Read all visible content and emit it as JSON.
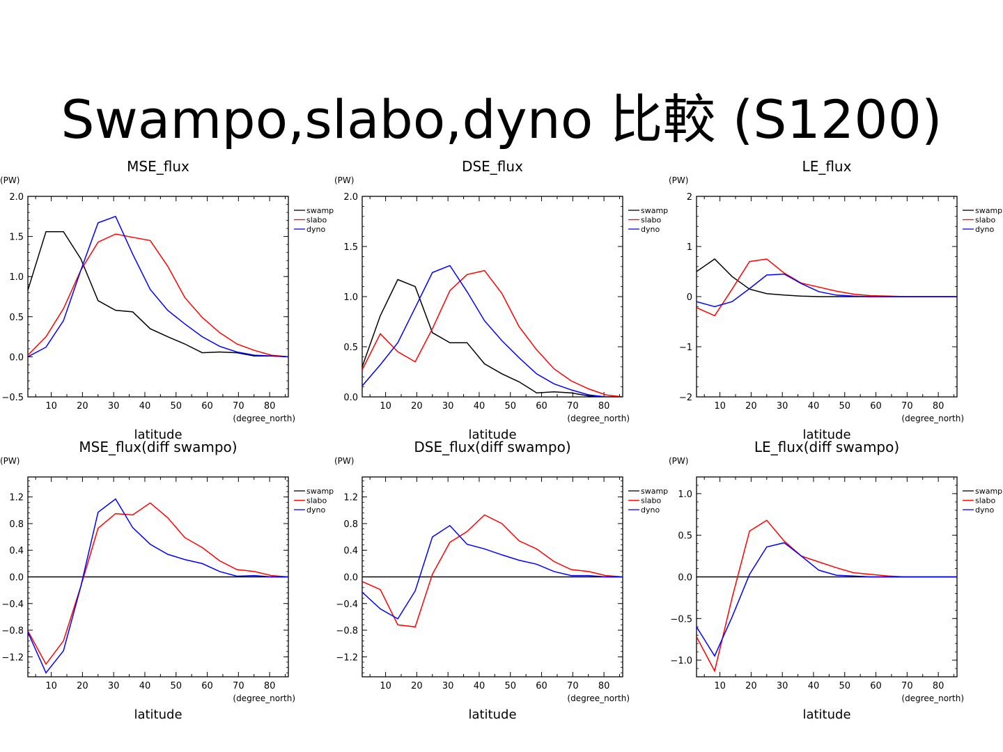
{
  "slide": {
    "title": "Swampo,slabo,dyno 比較 (S1200)"
  },
  "colors": {
    "swamp": "#000000",
    "slabo": "#ff0000",
    "dyno": "#0000ff"
  },
  "chart_data": [
    {
      "type": "line",
      "title": "MSE_flux",
      "ylabel": "(PW)",
      "xlabel": "latitude",
      "xunit": "(degree_north)",
      "xlim": [
        2.5,
        86
      ],
      "ylim": [
        -0.5,
        2.0
      ],
      "xticks": [
        10,
        20,
        30,
        40,
        50,
        60,
        70,
        80
      ],
      "yticks": [
        -0.5,
        0.0,
        0.5,
        1.0,
        1.5,
        2.0
      ],
      "ytick_labels": [
        "−0.5",
        "0.0",
        "0.5",
        "1.0",
        "1.5",
        "2.0"
      ],
      "legend": "top-right",
      "series": [
        {
          "name": "swamp",
          "x": [
            2.5,
            8.3,
            13.9,
            19.5,
            25.0,
            30.6,
            36.1,
            41.7,
            47.3,
            52.8,
            58.4,
            64.0,
            69.5,
            75.1,
            80.6,
            86.0
          ],
          "y": [
            0.83,
            1.56,
            1.56,
            1.22,
            0.7,
            0.58,
            0.56,
            0.35,
            0.25,
            0.16,
            0.05,
            0.06,
            0.05,
            0.01,
            0.01,
            0.0
          ]
        },
        {
          "name": "slabo",
          "x": [
            2.5,
            8.3,
            13.9,
            19.5,
            25.0,
            30.6,
            36.1,
            41.7,
            47.3,
            52.8,
            58.4,
            64.0,
            69.5,
            75.1,
            80.6,
            86.0
          ],
          "y": [
            0.02,
            0.25,
            0.6,
            1.08,
            1.43,
            1.53,
            1.49,
            1.45,
            1.13,
            0.74,
            0.49,
            0.3,
            0.16,
            0.08,
            0.02,
            0.0
          ]
        },
        {
          "name": "dyno",
          "x": [
            2.5,
            8.3,
            13.9,
            19.5,
            25.0,
            30.6,
            36.1,
            41.7,
            47.3,
            52.8,
            58.4,
            64.0,
            69.5,
            75.1,
            80.6,
            86.0
          ],
          "y": [
            0.0,
            0.12,
            0.45,
            1.08,
            1.67,
            1.75,
            1.28,
            0.84,
            0.58,
            0.41,
            0.25,
            0.13,
            0.06,
            0.02,
            0.01,
            0.0
          ]
        }
      ]
    },
    {
      "type": "line",
      "title": "DSE_flux",
      "ylabel": "(PW)",
      "xlabel": "latitude",
      "xunit": "(degree_north)",
      "xlim": [
        2.5,
        86
      ],
      "ylim": [
        0.0,
        2.0
      ],
      "xticks": [
        10,
        20,
        30,
        40,
        50,
        60,
        70,
        80
      ],
      "yticks": [
        0.0,
        0.5,
        1.0,
        1.5,
        2.0
      ],
      "ytick_labels": [
        "0.0",
        "0.5",
        "1.0",
        "1.5",
        "2.0"
      ],
      "legend": "top-right",
      "series": [
        {
          "name": "swamp",
          "x": [
            2.5,
            8.3,
            13.9,
            19.5,
            25.0,
            30.6,
            36.1,
            41.7,
            47.3,
            52.8,
            58.4,
            64.0,
            69.5,
            75.1,
            80.6,
            86.0
          ],
          "y": [
            0.3,
            0.81,
            1.17,
            1.1,
            0.64,
            0.54,
            0.54,
            0.33,
            0.23,
            0.15,
            0.04,
            0.05,
            0.04,
            0.01,
            0.0,
            0.0
          ]
        },
        {
          "name": "slabo",
          "x": [
            2.5,
            8.3,
            13.9,
            19.5,
            25.0,
            30.6,
            36.1,
            41.7,
            47.3,
            52.8,
            58.4,
            64.0,
            69.5,
            75.1,
            80.6,
            86.0
          ],
          "y": [
            0.27,
            0.63,
            0.45,
            0.35,
            0.68,
            1.06,
            1.22,
            1.26,
            1.03,
            0.7,
            0.47,
            0.28,
            0.16,
            0.08,
            0.02,
            0.0
          ]
        },
        {
          "name": "dyno",
          "x": [
            2.5,
            8.3,
            13.9,
            19.5,
            25.0,
            30.6,
            36.1,
            41.7,
            47.3,
            52.8,
            58.4,
            64.0,
            69.5,
            75.1,
            80.6,
            86.0
          ],
          "y": [
            0.11,
            0.32,
            0.54,
            0.89,
            1.24,
            1.31,
            1.05,
            0.76,
            0.56,
            0.39,
            0.23,
            0.13,
            0.07,
            0.02,
            0.0,
            0.0
          ]
        }
      ]
    },
    {
      "type": "line",
      "title": "LE_flux",
      "ylabel": "(PW)",
      "xlabel": "latitude",
      "xunit": "(degree_north)",
      "xlim": [
        2.5,
        86
      ],
      "ylim": [
        -2,
        2
      ],
      "xticks": [
        10,
        20,
        30,
        40,
        50,
        60,
        70,
        80
      ],
      "yticks": [
        -2,
        -1,
        0,
        1,
        2
      ],
      "ytick_labels": [
        "−2",
        "−1",
        "0",
        "1",
        "2"
      ],
      "legend": "top-right",
      "series": [
        {
          "name": "swamp",
          "x": [
            2.5,
            8.3,
            13.9,
            19.5,
            25.0,
            30.6,
            36.1,
            41.7,
            47.3,
            52.8,
            58.4,
            64.0,
            69.5,
            75.1,
            80.6,
            86.0
          ],
          "y": [
            0.5,
            0.75,
            0.4,
            0.15,
            0.06,
            0.03,
            0.01,
            0.0,
            0.0,
            0.0,
            0.0,
            0.0,
            0.0,
            0.0,
            0.0,
            0.0
          ]
        },
        {
          "name": "slabo",
          "x": [
            2.5,
            8.3,
            13.9,
            19.5,
            25.0,
            30.6,
            36.1,
            41.7,
            47.3,
            52.8,
            58.4,
            64.0,
            69.5,
            75.1,
            80.6,
            86.0
          ],
          "y": [
            -0.22,
            -0.38,
            0.15,
            0.7,
            0.75,
            0.47,
            0.27,
            0.19,
            0.11,
            0.05,
            0.02,
            0.01,
            0.0,
            0.0,
            0.0,
            0.0
          ]
        },
        {
          "name": "dyno",
          "x": [
            2.5,
            8.3,
            13.9,
            19.5,
            25.0,
            30.6,
            36.1,
            41.7,
            47.3,
            52.8,
            58.4,
            64.0,
            69.5,
            75.1,
            80.6,
            86.0
          ],
          "y": [
            -0.1,
            -0.2,
            -0.1,
            0.16,
            0.43,
            0.45,
            0.26,
            0.1,
            0.03,
            0.01,
            0.0,
            0.0,
            0.0,
            0.0,
            0.0,
            0.0
          ]
        }
      ]
    },
    {
      "type": "line",
      "title": "MSE_flux(diff swampo)",
      "ylabel": "(PW)",
      "xlabel": "latitude",
      "xunit": "(degree_north)",
      "xlim": [
        2.5,
        86
      ],
      "ylim": [
        -1.5,
        1.5
      ],
      "xticks": [
        10,
        20,
        30,
        40,
        50,
        60,
        70,
        80
      ],
      "yticks": [
        -1.2,
        -0.8,
        -0.4,
        0.0,
        0.4,
        0.8,
        1.2
      ],
      "ytick_labels": [
        "−1.2",
        "−0.8",
        "−0.4",
        "0.0",
        "0.4",
        "0.8",
        "1.2"
      ],
      "legend": "top-right",
      "series": [
        {
          "name": "swamp",
          "x": [
            2.5,
            86.0
          ],
          "y": [
            0.0,
            0.0
          ]
        },
        {
          "name": "slabo",
          "x": [
            2.5,
            8.3,
            13.9,
            19.5,
            25.0,
            30.6,
            36.1,
            41.7,
            47.3,
            52.8,
            58.4,
            64.0,
            69.5,
            75.1,
            80.6,
            86.0
          ],
          "y": [
            -0.81,
            -1.31,
            -0.96,
            -0.14,
            0.73,
            0.95,
            0.93,
            1.11,
            0.89,
            0.59,
            0.44,
            0.24,
            0.11,
            0.08,
            0.02,
            0.0
          ]
        },
        {
          "name": "dyno",
          "x": [
            2.5,
            8.3,
            13.9,
            19.5,
            25.0,
            30.6,
            36.1,
            41.7,
            47.3,
            52.8,
            58.4,
            64.0,
            69.5,
            75.1,
            80.6,
            86.0
          ],
          "y": [
            -0.83,
            -1.44,
            -1.11,
            -0.14,
            0.97,
            1.17,
            0.74,
            0.49,
            0.34,
            0.26,
            0.2,
            0.08,
            0.01,
            0.02,
            0.0,
            0.0
          ]
        }
      ]
    },
    {
      "type": "line",
      "title": "DSE_flux(diff swampo)",
      "ylabel": "(PW)",
      "xlabel": "latitude",
      "xunit": "(degree_north)",
      "xlim": [
        2.5,
        86
      ],
      "ylim": [
        -1.5,
        1.5
      ],
      "xticks": [
        10,
        20,
        30,
        40,
        50,
        60,
        70,
        80
      ],
      "yticks": [
        -1.2,
        -0.8,
        -0.4,
        0.0,
        0.4,
        0.8,
        1.2
      ],
      "ytick_labels": [
        "−1.2",
        "−0.8",
        "−0.4",
        "0.0",
        "0.4",
        "0.8",
        "1.2"
      ],
      "legend": "top-right",
      "series": [
        {
          "name": "swamp",
          "x": [
            2.5,
            86.0
          ],
          "y": [
            0.0,
            0.0
          ]
        },
        {
          "name": "slabo",
          "x": [
            2.5,
            8.3,
            13.9,
            19.5,
            25.0,
            30.6,
            36.1,
            41.7,
            47.3,
            52.8,
            58.4,
            64.0,
            69.5,
            75.1,
            80.6,
            86.0
          ],
          "y": [
            -0.07,
            -0.19,
            -0.72,
            -0.75,
            0.04,
            0.52,
            0.68,
            0.93,
            0.8,
            0.54,
            0.42,
            0.23,
            0.11,
            0.08,
            0.02,
            0.0
          ]
        },
        {
          "name": "dyno",
          "x": [
            2.5,
            8.3,
            13.9,
            19.5,
            25.0,
            30.6,
            36.1,
            41.7,
            47.3,
            52.8,
            58.4,
            64.0,
            69.5,
            75.1,
            80.6,
            86.0
          ],
          "y": [
            -0.23,
            -0.48,
            -0.63,
            -0.21,
            0.6,
            0.77,
            0.49,
            0.42,
            0.33,
            0.25,
            0.19,
            0.08,
            0.02,
            0.02,
            0.0,
            0.0
          ]
        }
      ]
    },
    {
      "type": "line",
      "title": "LE_flux(diff swampo)",
      "ylabel": "(PW)",
      "xlabel": "latitude",
      "xunit": "(degree_north)",
      "xlim": [
        2.5,
        86
      ],
      "ylim": [
        -1.2,
        1.2
      ],
      "xticks": [
        10,
        20,
        30,
        40,
        50,
        60,
        70,
        80
      ],
      "yticks": [
        -1.0,
        -0.5,
        0.0,
        0.5,
        1.0
      ],
      "ytick_labels": [
        "−1.0",
        "−0.5",
        "0.0",
        "0.5",
        "1.0"
      ],
      "legend": "top-right",
      "series": [
        {
          "name": "swamp",
          "x": [
            2.5,
            86.0
          ],
          "y": [
            0.0,
            0.0
          ]
        },
        {
          "name": "slabo",
          "x": [
            2.5,
            8.3,
            13.9,
            19.5,
            25.0,
            30.6,
            36.1,
            41.7,
            47.3,
            52.8,
            58.4,
            64.0,
            69.5,
            75.1,
            80.6,
            86.0
          ],
          "y": [
            -0.72,
            -1.13,
            -0.25,
            0.55,
            0.68,
            0.43,
            0.25,
            0.18,
            0.11,
            0.05,
            0.03,
            0.01,
            0.0,
            0.0,
            0.0,
            0.0
          ]
        },
        {
          "name": "dyno",
          "x": [
            2.5,
            8.3,
            13.9,
            19.5,
            25.0,
            30.6,
            36.1,
            41.7,
            47.3,
            52.8,
            58.4,
            64.0,
            69.5,
            75.1,
            80.6,
            86.0
          ],
          "y": [
            -0.6,
            -0.95,
            -0.48,
            0.03,
            0.36,
            0.41,
            0.25,
            0.08,
            0.02,
            0.01,
            0.0,
            0.0,
            0.0,
            0.0,
            0.0,
            0.0
          ]
        }
      ]
    }
  ]
}
